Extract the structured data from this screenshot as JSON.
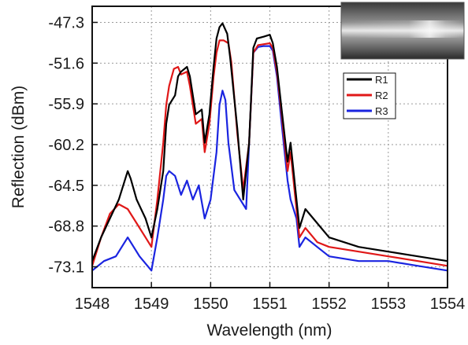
{
  "chart_data": {
    "type": "line",
    "title": "",
    "xlabel": "Wavelength (nm)",
    "ylabel": "Reflection (dBm)",
    "xlim": [
      1548,
      1554
    ],
    "ylim": [
      -75.3,
      -45.6
    ],
    "xticks": [
      "1548",
      "1549",
      "1550",
      "1551",
      "1552",
      "1553",
      "1554"
    ],
    "yticks": [
      "-47.3",
      "-51.6",
      "-55.9",
      "-60.2",
      "-64.5",
      "-68.8",
      "-73.1"
    ],
    "ytick_values": [
      -47.3,
      -51.6,
      -55.9,
      -60.2,
      -64.5,
      -68.8,
      -73.1
    ],
    "grid": true,
    "legend_position": "top-right",
    "inset": "photo-of-fiber",
    "series": [
      {
        "name": "R1",
        "color": "#000000",
        "x": [
          1548.0,
          1548.15,
          1548.3,
          1548.45,
          1548.6,
          1548.65,
          1548.75,
          1548.9,
          1549.0,
          1549.1,
          1549.2,
          1549.25,
          1549.3,
          1549.4,
          1549.45,
          1549.5,
          1549.6,
          1549.65,
          1549.75,
          1549.85,
          1549.9,
          1549.98,
          1550.05,
          1550.1,
          1550.15,
          1550.2,
          1550.28,
          1550.33,
          1550.45,
          1550.55,
          1550.65,
          1550.72,
          1550.78,
          1550.9,
          1551.0,
          1551.05,
          1551.12,
          1551.2,
          1551.3,
          1551.35,
          1551.45,
          1551.5,
          1551.6,
          1551.8,
          1552.0,
          1552.5,
          1553.0,
          1553.5,
          1554.0
        ],
        "y": [
          -72.5,
          -70.0,
          -68.0,
          -66.0,
          -63.0,
          -63.8,
          -66.0,
          -68.0,
          -70.0,
          -67.0,
          -63.0,
          -58.0,
          -56.0,
          -55.0,
          -53.0,
          -52.5,
          -52.0,
          -53.0,
          -57.0,
          -56.5,
          -60.0,
          -57.0,
          -52.0,
          -49.0,
          -47.8,
          -47.4,
          -48.5,
          -51.0,
          -58.5,
          -66.0,
          -60.0,
          -50.0,
          -49.0,
          -48.8,
          -48.6,
          -49.5,
          -52.0,
          -56.5,
          -62.0,
          -60.0,
          -66.0,
          -69.0,
          -67.0,
          -68.5,
          -70.0,
          -71.0,
          -71.5,
          -72.0,
          -72.5
        ]
      },
      {
        "name": "R2",
        "color": "#e01818",
        "x": [
          1548.0,
          1548.15,
          1548.3,
          1548.45,
          1548.6,
          1548.75,
          1548.9,
          1549.0,
          1549.1,
          1549.2,
          1549.25,
          1549.3,
          1549.38,
          1549.45,
          1549.5,
          1549.6,
          1549.65,
          1549.75,
          1549.85,
          1549.9,
          1549.98,
          1550.05,
          1550.1,
          1550.15,
          1550.22,
          1550.3,
          1550.35,
          1550.45,
          1550.55,
          1550.65,
          1550.72,
          1550.8,
          1550.9,
          1551.0,
          1551.05,
          1551.12,
          1551.2,
          1551.3,
          1551.35,
          1551.45,
          1551.5,
          1551.6,
          1551.8,
          1552.0,
          1552.5,
          1553.0,
          1553.5,
          1554.0
        ],
        "y": [
          -73.0,
          -70.0,
          -67.5,
          -66.5,
          -67.0,
          -68.5,
          -70.0,
          -71.0,
          -66.0,
          -60.0,
          -56.0,
          -54.0,
          -52.2,
          -52.0,
          -52.8,
          -52.5,
          -54.0,
          -58.0,
          -57.5,
          -61.0,
          -58.0,
          -53.0,
          -50.5,
          -49.2,
          -49.2,
          -49.5,
          -51.5,
          -59.0,
          -65.0,
          -60.0,
          -50.5,
          -49.7,
          -49.6,
          -49.5,
          -50.0,
          -52.5,
          -57.0,
          -63.0,
          -61.0,
          -67.0,
          -70.0,
          -69.0,
          -70.5,
          -71.0,
          -71.5,
          -72.0,
          -72.5,
          -73.0
        ]
      },
      {
        "name": "R3",
        "color": "#1a24e0",
        "x": [
          1548.0,
          1548.2,
          1548.4,
          1548.6,
          1548.8,
          1549.0,
          1549.1,
          1549.2,
          1549.25,
          1549.3,
          1549.4,
          1549.5,
          1549.6,
          1549.7,
          1549.8,
          1549.9,
          1550.0,
          1550.1,
          1550.15,
          1550.2,
          1550.25,
          1550.3,
          1550.4,
          1550.5,
          1550.6,
          1550.65,
          1550.72,
          1550.8,
          1550.9,
          1551.0,
          1551.05,
          1551.12,
          1551.2,
          1551.3,
          1551.35,
          1551.45,
          1551.5,
          1551.6,
          1551.8,
          1552.0,
          1552.5,
          1553.0,
          1553.5,
          1554.0
        ],
        "y": [
          -73.5,
          -72.5,
          -72.0,
          -70.0,
          -72.0,
          -73.5,
          -70.0,
          -66.0,
          -63.5,
          -63.0,
          -63.5,
          -65.5,
          -64.0,
          -66.0,
          -64.5,
          -68.0,
          -66.0,
          -61.0,
          -56.0,
          -54.5,
          -55.5,
          -60.0,
          -65.0,
          -66.0,
          -67.0,
          -60.0,
          -50.5,
          -49.9,
          -49.8,
          -49.8,
          -50.3,
          -53.0,
          -58.0,
          -64.0,
          -66.0,
          -68.0,
          -71.0,
          -70.0,
          -71.0,
          -72.0,
          -72.5,
          -72.5,
          -73.0,
          -73.5
        ]
      }
    ]
  }
}
